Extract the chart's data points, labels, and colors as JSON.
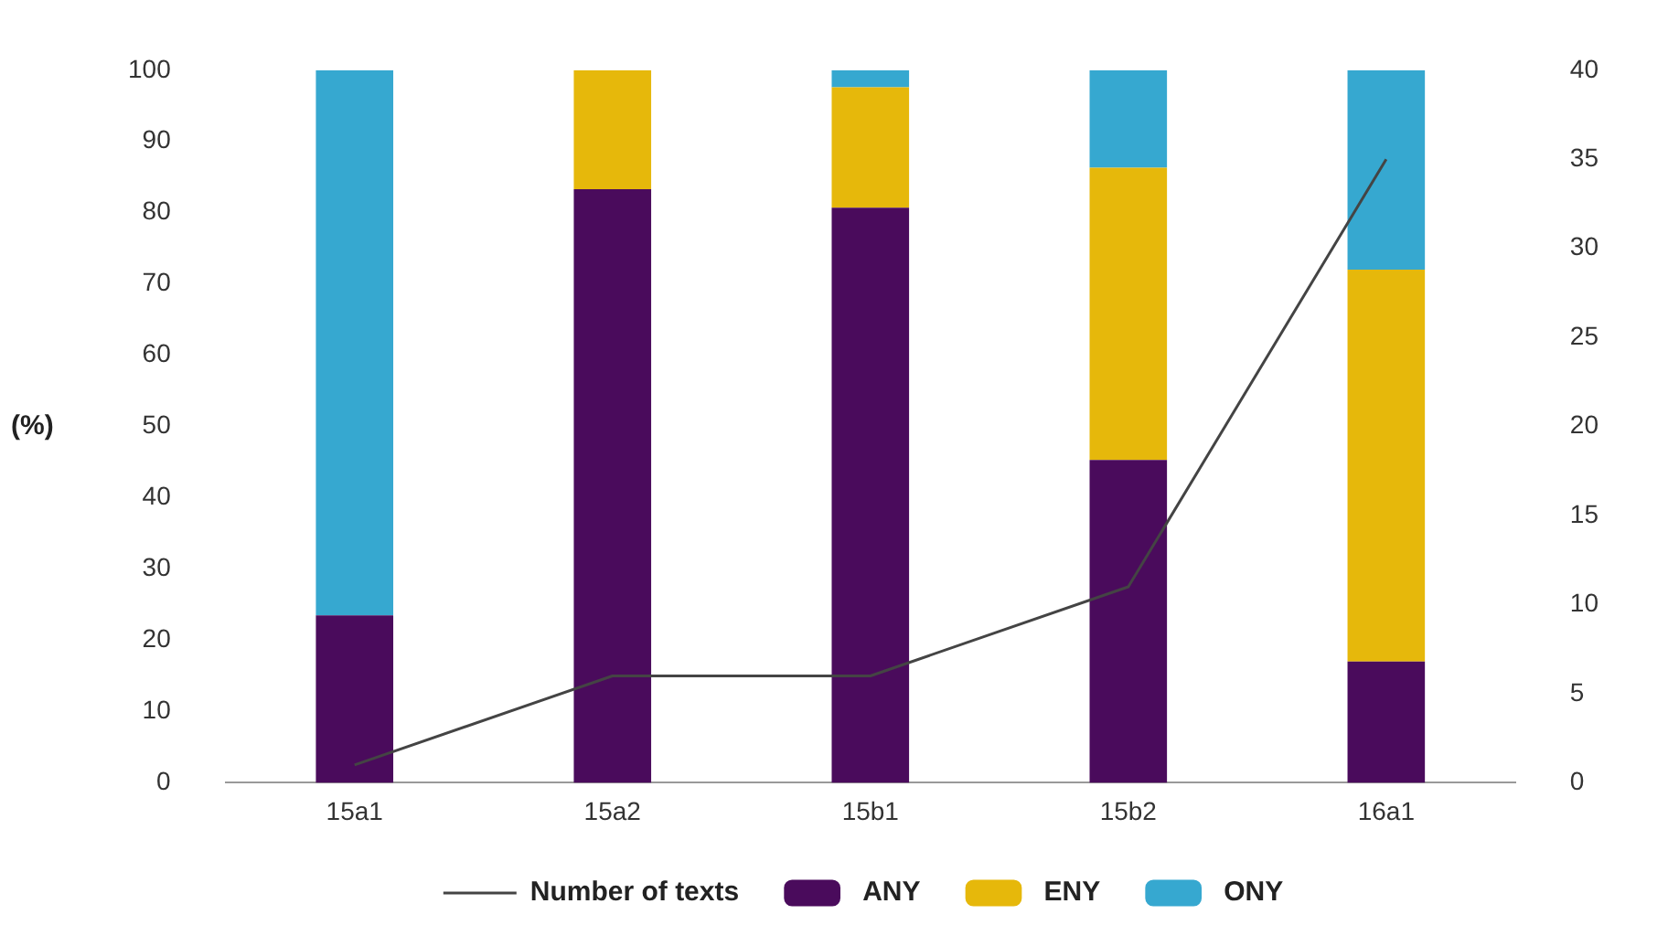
{
  "chart_data": {
    "type": "bar",
    "stacked": true,
    "ylabel": "(%)",
    "categories": [
      "15a1",
      "15a2",
      "15b1",
      "15b2",
      "16a1"
    ],
    "series": [
      {
        "name": "ANY",
        "color": "#4a0b5c",
        "values": [
          23.5,
          83.3,
          80.7,
          45.3,
          17
        ]
      },
      {
        "name": "ENY",
        "color": "#e6b80b",
        "values": [
          0,
          16.7,
          16.9,
          41,
          55
        ]
      },
      {
        "name": "ONY",
        "color": "#36a8d0",
        "values": [
          76.5,
          0,
          2.4,
          13.7,
          28
        ]
      },
      {
        "name": "Number of texts",
        "type": "line",
        "axis": "y2",
        "color": "#444444",
        "values": [
          1,
          6,
          6,
          11,
          35
        ]
      }
    ],
    "ylim": [
      0,
      100
    ],
    "yticks": [
      0,
      10,
      20,
      30,
      40,
      50,
      60,
      70,
      80,
      90,
      100
    ],
    "y2lim": [
      0,
      40
    ],
    "y2ticks": [
      0,
      5,
      10,
      15,
      20,
      25,
      30,
      35,
      40
    ],
    "grid": false,
    "legend": "bottom",
    "marker": "none"
  }
}
